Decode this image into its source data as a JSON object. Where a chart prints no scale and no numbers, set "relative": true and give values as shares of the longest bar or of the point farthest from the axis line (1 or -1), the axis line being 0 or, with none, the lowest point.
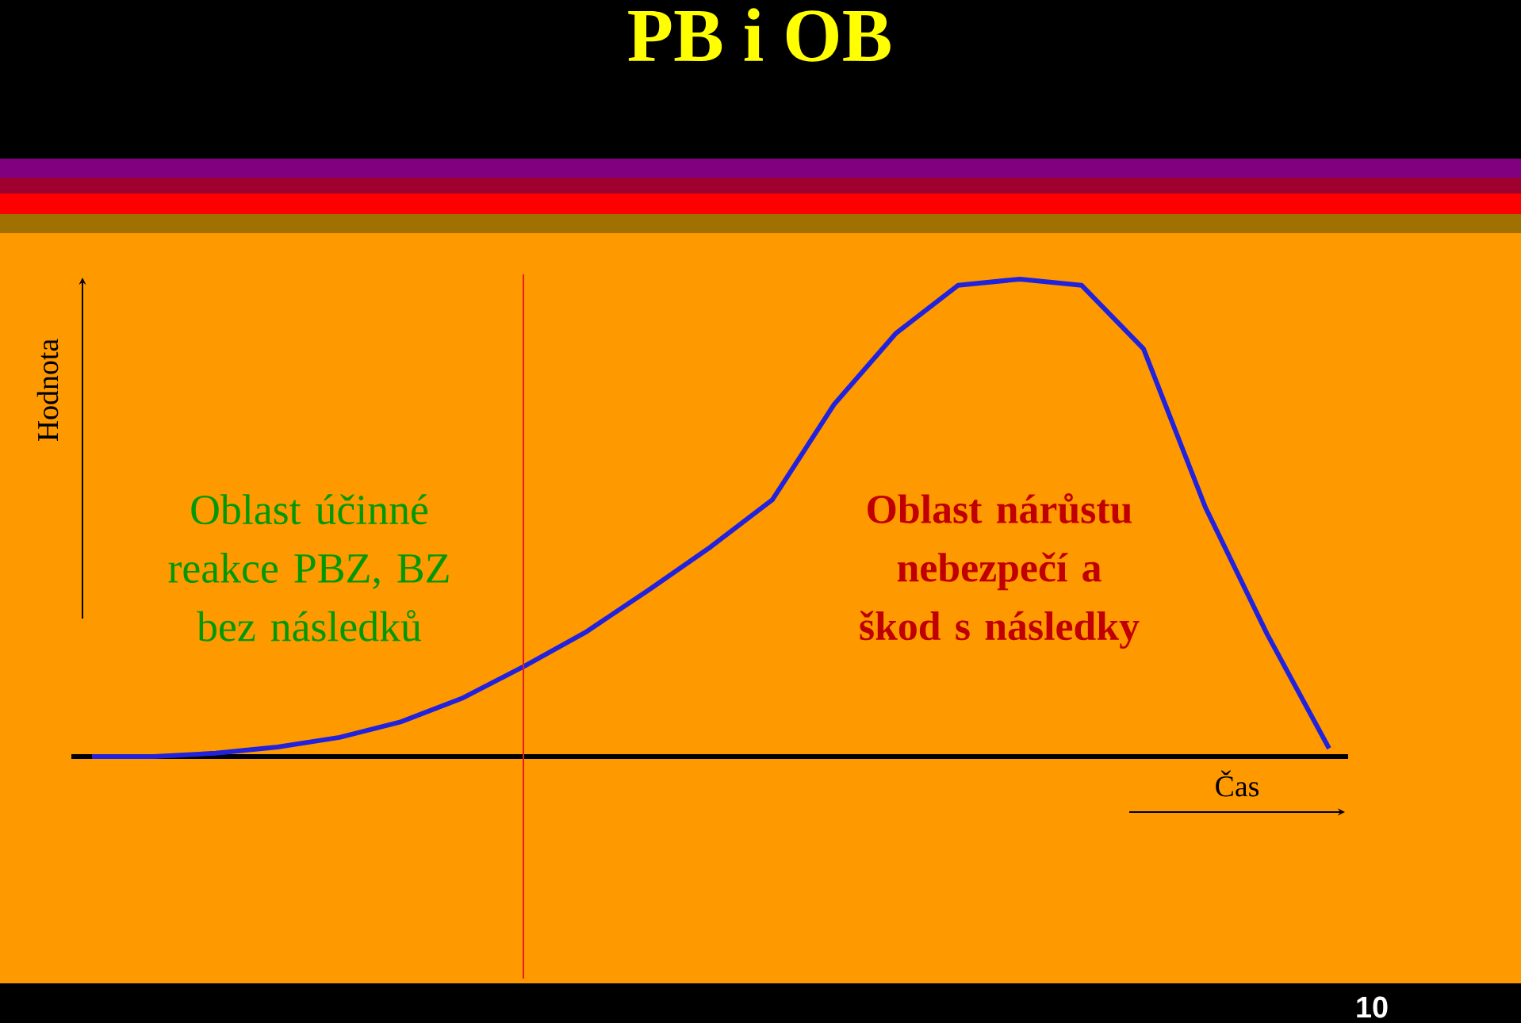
{
  "chart_data": {
    "type": "line",
    "title": "PB i OB",
    "relative": true,
    "categories": [
      null,
      null,
      null,
      null,
      null,
      null,
      null,
      null,
      null,
      null,
      null,
      null,
      null,
      null,
      null,
      null,
      null,
      null,
      null,
      null,
      null
    ],
    "series": [
      {
        "color": "#2222dd",
        "values": [
          0,
          0,
          0.007,
          0.02,
          0.04,
          0.073,
          0.123,
          0.19,
          0.262,
          0.349,
          0.439,
          0.538,
          0.738,
          0.887,
          0.987,
          1,
          0.987,
          0.854,
          0.522,
          0.256,
          0.017
        ]
      }
    ],
    "annotations": [
      "Oblast účinné reakce PBZ, BZ bez následků",
      "Oblast nárůstu nebezpečí a škod s následky",
      "Hodnota",
      "Čas",
      "10"
    ]
  }
}
